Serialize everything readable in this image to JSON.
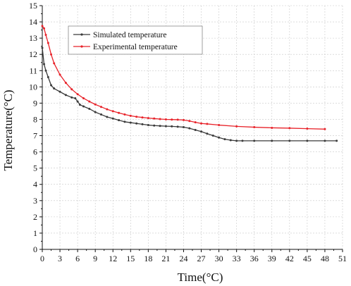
{
  "chart_data": {
    "type": "line",
    "xlabel": "Time(°C)",
    "ylabel": "Temperature(°C)",
    "xlim": [
      0,
      51
    ],
    "ylim": [
      0,
      15
    ],
    "x_ticks": [
      0,
      3,
      6,
      9,
      12,
      15,
      18,
      21,
      24,
      27,
      30,
      33,
      36,
      39,
      42,
      45,
      48,
      51
    ],
    "y_ticks": [
      0,
      1,
      2,
      3,
      4,
      5,
      6,
      7,
      8,
      9,
      10,
      11,
      12,
      13,
      14,
      15
    ],
    "grid": true,
    "legend_position": "top-center",
    "series": [
      {
        "name": "Simulated temperature",
        "color": "#3a3a3a",
        "x": [
          0,
          0.3,
          0.6,
          1,
          1.5,
          2,
          3,
          4,
          5,
          5.6,
          6,
          6.4,
          7,
          8,
          9,
          10,
          11,
          12,
          13,
          14,
          15,
          16,
          17,
          18,
          19,
          20,
          21,
          22,
          23,
          24,
          25,
          26,
          27,
          28,
          29,
          30,
          31,
          32,
          33,
          34,
          36,
          39,
          42,
          45,
          48,
          50
        ],
        "values": [
          12.4,
          11.4,
          11.0,
          10.6,
          10.1,
          9.9,
          9.7,
          9.5,
          9.35,
          9.3,
          9.1,
          8.9,
          8.8,
          8.65,
          8.45,
          8.3,
          8.15,
          8.05,
          7.95,
          7.85,
          7.8,
          7.75,
          7.7,
          7.65,
          7.62,
          7.6,
          7.58,
          7.57,
          7.55,
          7.52,
          7.45,
          7.35,
          7.25,
          7.12,
          7.0,
          6.88,
          6.78,
          6.72,
          6.68,
          6.68,
          6.68,
          6.68,
          6.68,
          6.68,
          6.68,
          6.68
        ]
      },
      {
        "name": "Experimental temperature",
        "color": "#e8232a",
        "x": [
          0,
          0.3,
          0.6,
          1,
          1.5,
          2,
          3,
          4,
          5,
          6,
          7,
          8,
          9,
          10,
          11,
          12,
          13,
          14,
          15,
          16,
          17,
          18,
          19,
          20,
          21,
          22,
          23,
          24,
          25,
          26,
          27,
          28,
          30,
          33,
          36,
          39,
          42,
          45,
          48
        ],
        "values": [
          13.75,
          13.6,
          13.2,
          12.7,
          12.0,
          11.45,
          10.75,
          10.25,
          9.85,
          9.55,
          9.3,
          9.1,
          8.92,
          8.77,
          8.62,
          8.5,
          8.4,
          8.3,
          8.22,
          8.16,
          8.12,
          8.08,
          8.05,
          8.02,
          8.0,
          7.99,
          7.98,
          7.96,
          7.9,
          7.82,
          7.75,
          7.72,
          7.65,
          7.57,
          7.52,
          7.48,
          7.46,
          7.43,
          7.4
        ]
      }
    ]
  }
}
